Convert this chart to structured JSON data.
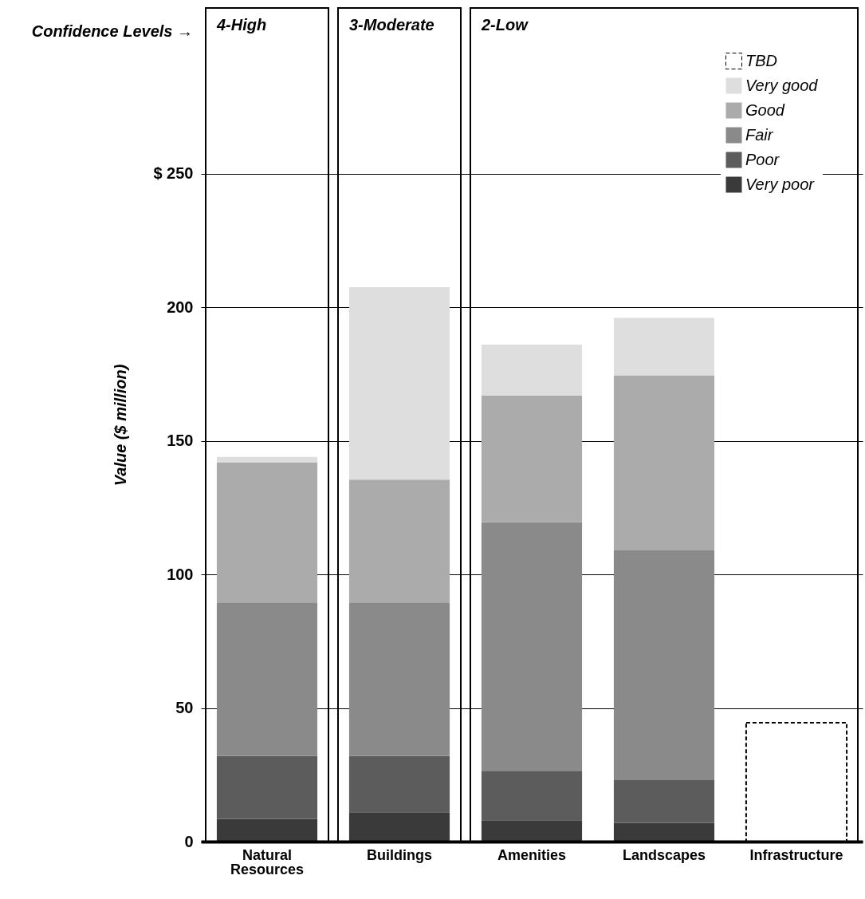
{
  "chart_data": {
    "type": "bar",
    "stacked": true,
    "ylabel": "Value ($ million)",
    "categories": [
      "Natural Resources",
      "Buildings",
      "Amenities",
      "Landscapes",
      "Infrastructure"
    ],
    "series": [
      {
        "name": "Very poor",
        "color": "#3a3a3a",
        "values": [
          8.5,
          11,
          8,
          7,
          null
        ]
      },
      {
        "name": "Poor",
        "color": "#5c5c5c",
        "values": [
          23.5,
          21,
          18.5,
          16,
          null
        ]
      },
      {
        "name": "Fair",
        "color": "#8a8a8a",
        "values": [
          57.5,
          57.5,
          93,
          86,
          null
        ]
      },
      {
        "name": "Good",
        "color": "#ababab",
        "values": [
          52.5,
          46,
          47.5,
          65.5,
          null
        ]
      },
      {
        "name": "Very good",
        "color": "#dedede",
        "values": [
          2,
          72,
          19,
          21.5,
          null
        ]
      },
      {
        "name": "TBD",
        "color": "#ffffff",
        "line_style": "dashed",
        "values": [
          null,
          null,
          null,
          null,
          44.5
        ]
      }
    ],
    "ylim": [
      0,
      312
    ],
    "yticks": [
      0,
      50,
      100,
      150,
      200,
      {
        "value": 250,
        "label": "$ 250"
      }
    ],
    "grid": "y",
    "legend": "top right",
    "bands": [
      {
        "axis": "x",
        "from": "Natural Resources",
        "to": "Natural Resources",
        "label": "4-High"
      },
      {
        "axis": "x",
        "from": "Buildings",
        "to": "Buildings",
        "label": "3-Moderate"
      },
      {
        "axis": "x",
        "from": "Amenities",
        "to": "Infrastructure",
        "label": "2-Low"
      }
    ],
    "annotations": [
      "Confidence Levels →"
    ]
  }
}
